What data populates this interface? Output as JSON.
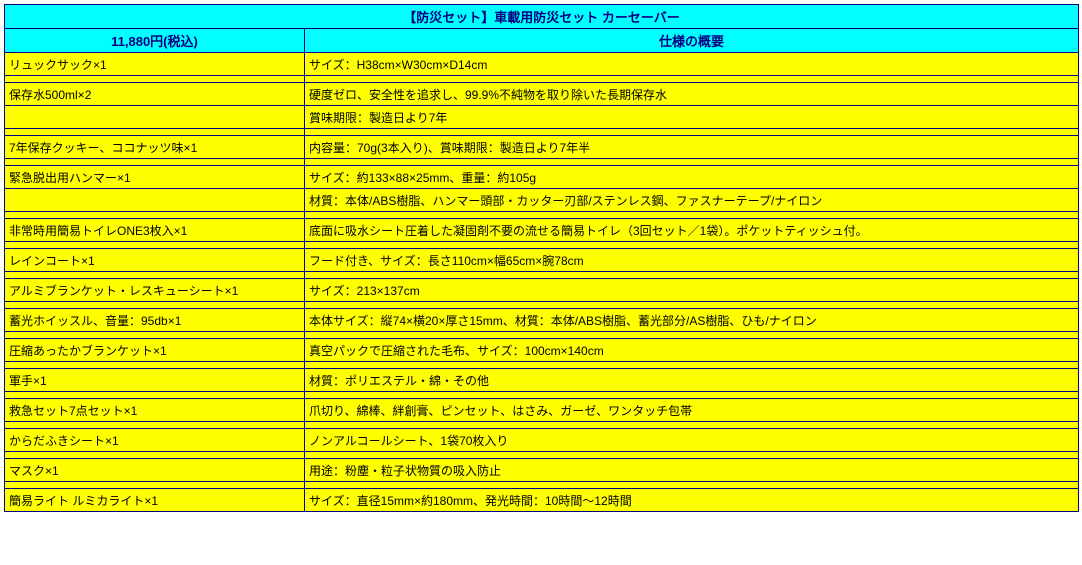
{
  "colors": {
    "border": "#000080",
    "header_bg": "#00ffff",
    "header_text": "#000080",
    "data_bg": "#ffff00",
    "data_text": "#000000"
  },
  "title": "【防災セット】車載用防災セット カーセーバー",
  "price_header": "11,880円(税込)",
  "spec_header": "仕様の概要",
  "items": [
    {
      "name": "リュックサック×1",
      "lines": [
        "サイズ：H38cm×W30cm×D14cm"
      ]
    },
    {
      "name": "保存水500ml×2",
      "lines": [
        "硬度ゼロ、安全性を追求し、99.9%不純物を取り除いた長期保存水",
        "賞味期限：製造日より7年"
      ]
    },
    {
      "name": "7年保存クッキー、ココナッツ味×1",
      "lines": [
        "内容量：70g(3本入り)、賞味期限：製造日より7年半"
      ]
    },
    {
      "name": "緊急脱出用ハンマー×1",
      "lines": [
        "サイズ：約133×88×25mm、重量：約105g",
        "材質：本体/ABS樹脂、ハンマー頭部・カッター刃部/ステンレス鋼、ファスナーテープ/ナイロン"
      ]
    },
    {
      "name": "非常時用簡易トイレONE3枚入×1",
      "lines": [
        "底面に吸水シート圧着した凝固剤不要の流せる簡易トイレ（3回セット／1袋）。ポケットティッシュ付。"
      ]
    },
    {
      "name": "レインコート×1",
      "lines": [
        "フード付き、サイズ：長さ110cm×幅65cm×腕78cm"
      ]
    },
    {
      "name": "アルミブランケット・レスキューシート×1",
      "lines": [
        "サイズ：213×137cm"
      ]
    },
    {
      "name": "蓄光ホイッスル、音量：95db×1",
      "lines": [
        "本体サイズ：縦74×横20×厚さ15mm、材質：本体/ABS樹脂、蓄光部分/AS樹脂、ひも/ナイロン"
      ]
    },
    {
      "name": "圧縮あったかブランケット×1",
      "lines": [
        "真空パックで圧縮された毛布、サイズ：100cm×140cm"
      ]
    },
    {
      "name": "軍手×1",
      "lines": [
        "材質：ポリエステル・綿・その他"
      ]
    },
    {
      "name": "救急セット7点セット×1",
      "lines": [
        "爪切り、綿棒、絆創膏、ピンセット、はさみ、ガーゼ、ワンタッチ包帯"
      ]
    },
    {
      "name": "からだふきシート×1",
      "lines": [
        "ノンアルコールシート、1袋70枚入り"
      ]
    },
    {
      "name": "マスク×1",
      "lines": [
        "用途：粉塵・粒子状物質の吸入防止"
      ]
    },
    {
      "name": "簡易ライト ルミカライト×1",
      "lines": [
        "サイズ：直径15mm×約180mm、発光時間：10時間～12時間"
      ]
    }
  ]
}
